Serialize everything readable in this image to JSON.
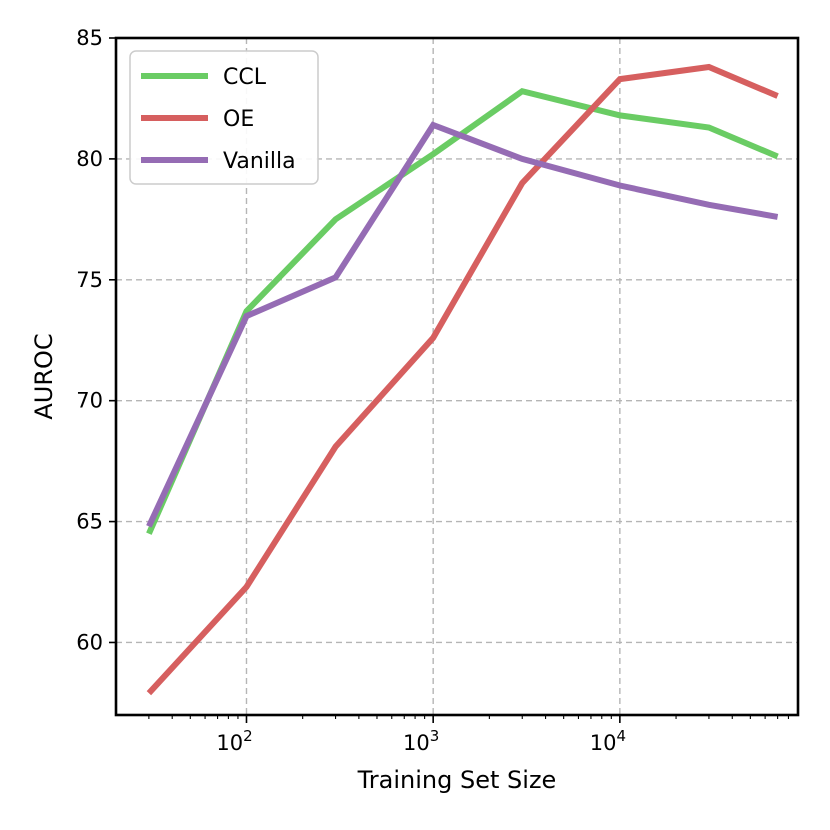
{
  "chart_data": {
    "type": "line",
    "title": "",
    "xlabel": "Training Set Size",
    "ylabel": "AUROC",
    "xscale": "log",
    "xlim": [
      20,
      90000
    ],
    "ylim": [
      57,
      85
    ],
    "grid": true,
    "legend_position": "top-left",
    "x": [
      30,
      100,
      300,
      1000,
      3000,
      10000,
      30000,
      70000
    ],
    "xticks": [
      {
        "value": 100,
        "base": "10",
        "exp": "2"
      },
      {
        "value": 1000,
        "base": "10",
        "exp": "3"
      },
      {
        "value": 10000,
        "base": "10",
        "exp": "4"
      }
    ],
    "yticks": [
      {
        "value": 60,
        "label": "60"
      },
      {
        "value": 65,
        "label": "65"
      },
      {
        "value": 70,
        "label": "70"
      },
      {
        "value": 75,
        "label": "75"
      },
      {
        "value": 80,
        "label": "80"
      },
      {
        "value": 85,
        "label": "85"
      }
    ],
    "series": [
      {
        "name": "CCL",
        "color": "#6acc64",
        "values": [
          64.5,
          73.7,
          77.5,
          80.2,
          82.8,
          81.8,
          81.3,
          80.1
        ]
      },
      {
        "name": "OE",
        "color": "#d65f5f",
        "values": [
          57.9,
          62.3,
          68.1,
          72.6,
          79.0,
          83.3,
          83.8,
          82.6
        ]
      },
      {
        "name": "Vanilla",
        "color": "#956cb4",
        "values": [
          64.8,
          73.5,
          75.1,
          81.4,
          80.0,
          78.9,
          78.1,
          77.6
        ]
      }
    ]
  }
}
